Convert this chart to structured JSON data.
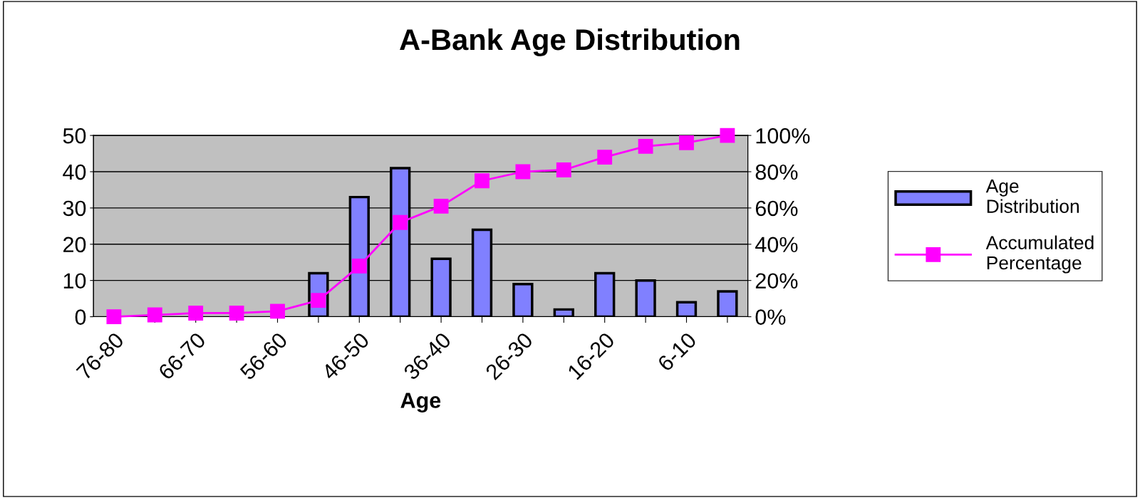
{
  "chart_data": {
    "type": "bar",
    "title": "A-Bank Age Distribution",
    "xlabel": "Age",
    "categories": [
      "76-80",
      null,
      "66-70",
      null,
      "56-60",
      null,
      "46-50",
      null,
      "36-40",
      null,
      "26-30",
      null,
      "16-20",
      null,
      "6-10",
      null
    ],
    "series": [
      {
        "name": "Age Distribution",
        "color": "#8080ff",
        "values": [
          0,
          0,
          0,
          0,
          0,
          12,
          33,
          41,
          16,
          24,
          9,
          2,
          12,
          10,
          4,
          7
        ]
      },
      {
        "name": "Accumulated Percentage",
        "type": "line",
        "axis": "y2",
        "color": "#ff00ff",
        "marker": "square",
        "values": [
          0,
          1,
          2,
          2,
          3,
          9,
          28,
          52,
          61,
          75,
          80,
          81,
          88,
          94,
          96,
          100
        ]
      }
    ],
    "ylim": [
      0,
      50
    ],
    "yticks": [
      0,
      10,
      20,
      30,
      40,
      50
    ],
    "y2lim": [
      0,
      100
    ],
    "y2ticks": [
      {
        "value": 0,
        "label": "0%"
      },
      {
        "value": 20,
        "label": "20%"
      },
      {
        "value": 40,
        "label": "40%"
      },
      {
        "value": 60,
        "label": "60%"
      },
      {
        "value": 80,
        "label": "80%"
      },
      {
        "value": 100,
        "label": "100%"
      }
    ],
    "grid": "y",
    "legend": "right"
  }
}
